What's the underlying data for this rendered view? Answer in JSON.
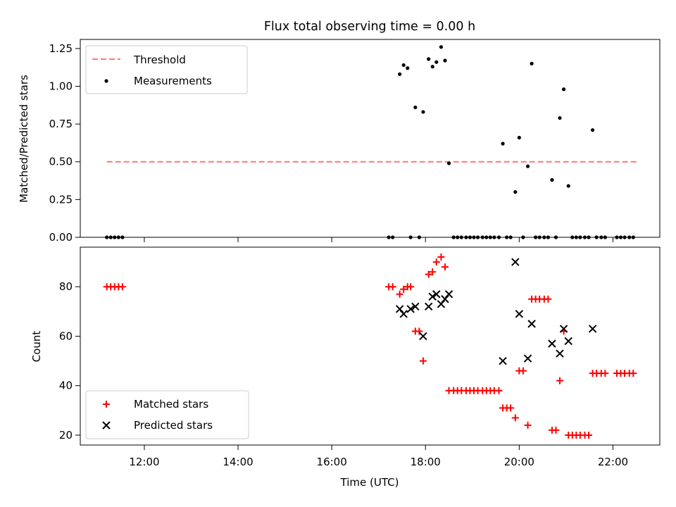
{
  "figure": {
    "title": "Flux total observing time = 0.00 h"
  },
  "chart_data": [
    {
      "type": "scatter",
      "title": "Flux total observing time = 0.00 h",
      "xlabel": "",
      "ylabel": "Matched/Predicted stars",
      "xlim": [
        "10:38",
        "23:00"
      ],
      "ylim": [
        0,
        1.31
      ],
      "yticks": [
        "0.00",
        "0.25",
        "0.50",
        "0.75",
        "1.00",
        "1.25"
      ],
      "grid": false,
      "legend": "top-left",
      "threshold": {
        "name": "Threshold",
        "y": 0.5,
        "x": [
          "11:12",
          "22:30"
        ],
        "color": "#ff7777",
        "style": "dashed"
      },
      "series": [
        {
          "name": "Measurements",
          "color": "#000000",
          "marker": "dot",
          "points": [
            [
              "11:12",
              0
            ],
            [
              "11:17",
              0
            ],
            [
              "11:22",
              0
            ],
            [
              "11:27",
              0
            ],
            [
              "11:32",
              0
            ],
            [
              "17:13",
              0
            ],
            [
              "17:18",
              0
            ],
            [
              "17:27",
              1.08
            ],
            [
              "17:32",
              1.14
            ],
            [
              "17:37",
              1.12
            ],
            [
              "17:47",
              0.86
            ],
            [
              "17:57",
              0.83
            ],
            [
              "17:41",
              0
            ],
            [
              "17:52",
              0
            ],
            [
              "18:04",
              1.18
            ],
            [
              "18:09",
              1.13
            ],
            [
              "18:14",
              1.16
            ],
            [
              "18:20",
              1.26
            ],
            [
              "18:25",
              1.17
            ],
            [
              "18:30",
              0.49
            ],
            [
              "18:36",
              0
            ],
            [
              "18:41",
              0
            ],
            [
              "18:46",
              0
            ],
            [
              "18:52",
              0
            ],
            [
              "18:57",
              0
            ],
            [
              "19:02",
              0
            ],
            [
              "19:07",
              0
            ],
            [
              "19:13",
              0
            ],
            [
              "19:18",
              0
            ],
            [
              "19:23",
              0
            ],
            [
              "19:28",
              0
            ],
            [
              "19:34",
              0
            ],
            [
              "19:44",
              0
            ],
            [
              "19:49",
              0
            ],
            [
              "19:39",
              0.62
            ],
            [
              "19:55",
              0.3
            ],
            [
              "20:00",
              0.66
            ],
            [
              "20:05",
              0
            ],
            [
              "20:11",
              0.47
            ],
            [
              "20:16",
              1.15
            ],
            [
              "20:21",
              0
            ],
            [
              "20:26",
              0
            ],
            [
              "20:32",
              0
            ],
            [
              "20:37",
              0
            ],
            [
              "20:42",
              0.38
            ],
            [
              "20:47",
              0
            ],
            [
              "20:52",
              0.79
            ],
            [
              "20:57",
              0.98
            ],
            [
              "21:03",
              0.34
            ],
            [
              "21:08",
              0
            ],
            [
              "21:13",
              0
            ],
            [
              "21:18",
              0
            ],
            [
              "21:24",
              0
            ],
            [
              "21:29",
              0
            ],
            [
              "21:34",
              0.71
            ],
            [
              "21:39",
              0
            ],
            [
              "21:45",
              0
            ],
            [
              "21:50",
              0
            ],
            [
              "22:05",
              0
            ],
            [
              "22:10",
              0
            ],
            [
              "22:15",
              0
            ],
            [
              "22:21",
              0
            ],
            [
              "22:26",
              0
            ]
          ]
        }
      ]
    },
    {
      "type": "scatter",
      "title": "",
      "xlabel": "Time (UTC)",
      "ylabel": "Count",
      "xlim": [
        "10:38",
        "23:00"
      ],
      "ylim": [
        16,
        96
      ],
      "xticks": [
        "12:00",
        "14:00",
        "16:00",
        "18:00",
        "20:00",
        "22:00"
      ],
      "yticks": [
        20,
        40,
        60,
        80
      ],
      "grid": false,
      "legend": "bottom-left",
      "series": [
        {
          "name": "Matched stars",
          "color": "#ff0000",
          "marker": "plus",
          "points": [
            [
              "11:12",
              80
            ],
            [
              "11:17",
              80
            ],
            [
              "11:22",
              80
            ],
            [
              "11:27",
              80
            ],
            [
              "11:32",
              80
            ],
            [
              "17:13",
              80
            ],
            [
              "17:18",
              80
            ],
            [
              "17:27",
              77
            ],
            [
              "17:32",
              79
            ],
            [
              "17:37",
              80
            ],
            [
              "17:41",
              80
            ],
            [
              "17:47",
              62
            ],
            [
              "17:52",
              62
            ],
            [
              "17:57",
              50
            ],
            [
              "18:04",
              85
            ],
            [
              "18:09",
              86
            ],
            [
              "18:14",
              90
            ],
            [
              "18:20",
              92
            ],
            [
              "18:25",
              88
            ],
            [
              "18:30",
              38
            ],
            [
              "18:36",
              38
            ],
            [
              "18:41",
              38
            ],
            [
              "18:46",
              38
            ],
            [
              "18:52",
              38
            ],
            [
              "18:57",
              38
            ],
            [
              "19:02",
              38
            ],
            [
              "19:07",
              38
            ],
            [
              "19:13",
              38
            ],
            [
              "19:18",
              38
            ],
            [
              "19:23",
              38
            ],
            [
              "19:28",
              38
            ],
            [
              "19:34",
              38
            ],
            [
              "19:39",
              31
            ],
            [
              "19:44",
              31
            ],
            [
              "19:49",
              31
            ],
            [
              "19:55",
              27
            ],
            [
              "20:00",
              46
            ],
            [
              "20:05",
              46
            ],
            [
              "20:11",
              24
            ],
            [
              "20:16",
              75
            ],
            [
              "20:21",
              75
            ],
            [
              "20:26",
              75
            ],
            [
              "20:32",
              75
            ],
            [
              "20:37",
              75
            ],
            [
              "20:42",
              22
            ],
            [
              "20:47",
              22
            ],
            [
              "20:52",
              42
            ],
            [
              "20:57",
              62
            ],
            [
              "21:03",
              20
            ],
            [
              "21:08",
              20
            ],
            [
              "21:13",
              20
            ],
            [
              "21:18",
              20
            ],
            [
              "21:24",
              20
            ],
            [
              "21:29",
              20
            ],
            [
              "21:34",
              45
            ],
            [
              "21:39",
              45
            ],
            [
              "21:45",
              45
            ],
            [
              "21:50",
              45
            ],
            [
              "22:05",
              45
            ],
            [
              "22:10",
              45
            ],
            [
              "22:15",
              45
            ],
            [
              "22:21",
              45
            ],
            [
              "22:26",
              45
            ]
          ]
        },
        {
          "name": "Predicted stars",
          "color": "#000000",
          "marker": "x",
          "points": [
            [
              "17:27",
              71
            ],
            [
              "17:32",
              69
            ],
            [
              "17:41",
              71
            ],
            [
              "17:47",
              72
            ],
            [
              "17:57",
              60
            ],
            [
              "18:04",
              72
            ],
            [
              "18:09",
              76
            ],
            [
              "18:14",
              77
            ],
            [
              "18:20",
              73
            ],
            [
              "18:25",
              75
            ],
            [
              "18:30",
              77
            ],
            [
              "19:39",
              50
            ],
            [
              "19:55",
              90
            ],
            [
              "20:00",
              69
            ],
            [
              "20:11",
              51
            ],
            [
              "20:16",
              65
            ],
            [
              "20:42",
              57
            ],
            [
              "20:52",
              53
            ],
            [
              "20:57",
              63
            ],
            [
              "21:03",
              58
            ],
            [
              "21:34",
              63
            ]
          ]
        }
      ]
    }
  ]
}
